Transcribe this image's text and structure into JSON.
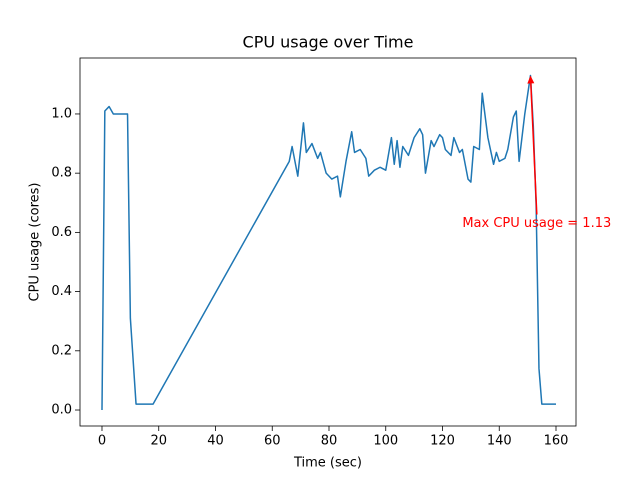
{
  "chart_data": {
    "type": "line",
    "title": "CPU usage over Time",
    "xlabel": "Time (sec)",
    "ylabel": "CPU usage (cores)",
    "color": "#1f77b4",
    "x": [
      0,
      1,
      2.5,
      4,
      9,
      10,
      12,
      15,
      18,
      66,
      67,
      69,
      71,
      72,
      74,
      76,
      77,
      79,
      81,
      83,
      84,
      86,
      88,
      89,
      91,
      93,
      94,
      96,
      98,
      100,
      102,
      103,
      104,
      105,
      106,
      108,
      110,
      112,
      113,
      114,
      116,
      117,
      119,
      120,
      121,
      123,
      124,
      126,
      127,
      129,
      130,
      131,
      133,
      134,
      136,
      138,
      139,
      140,
      142,
      143,
      145,
      146,
      147,
      149,
      151,
      152,
      153,
      154,
      155,
      157,
      160
    ],
    "values": [
      0,
      1.01,
      1.025,
      1.0,
      1.0,
      0.31,
      0.02,
      0.02,
      0.02,
      0.84,
      0.89,
      0.79,
      0.97,
      0.87,
      0.9,
      0.85,
      0.87,
      0.8,
      0.78,
      0.79,
      0.72,
      0.84,
      0.94,
      0.87,
      0.88,
      0.85,
      0.79,
      0.81,
      0.82,
      0.81,
      0.92,
      0.83,
      0.91,
      0.82,
      0.89,
      0.86,
      0.92,
      0.95,
      0.93,
      0.8,
      0.91,
      0.89,
      0.93,
      0.92,
      0.88,
      0.86,
      0.92,
      0.87,
      0.88,
      0.78,
      0.77,
      0.89,
      0.88,
      1.07,
      0.92,
      0.83,
      0.87,
      0.84,
      0.85,
      0.88,
      0.99,
      1.01,
      0.84,
      1.0,
      1.13,
      0.96,
      0.69,
      0.14,
      0.02,
      0.02,
      0.02
    ],
    "xlim": [
      -7.75,
      167.05
    ],
    "ylim": [
      -0.054,
      1.189
    ],
    "xticks": [
      0,
      20,
      40,
      60,
      80,
      100,
      120,
      140,
      160
    ],
    "yticks": [
      {
        "value": 0,
        "label": "0.0"
      },
      {
        "value": 0.2,
        "label": "0.2"
      },
      {
        "value": 0.4,
        "label": "0.4"
      },
      {
        "value": 0.6,
        "label": "0.6"
      },
      {
        "value": 0.8,
        "label": "0.8"
      },
      {
        "value": 1.0,
        "label": "1.0"
      }
    ],
    "annotation": {
      "text": "Max CPU usage = 1.13",
      "xy": [
        151,
        1.13
      ],
      "xytext": [
        127,
        0.63
      ],
      "color": "red"
    }
  }
}
